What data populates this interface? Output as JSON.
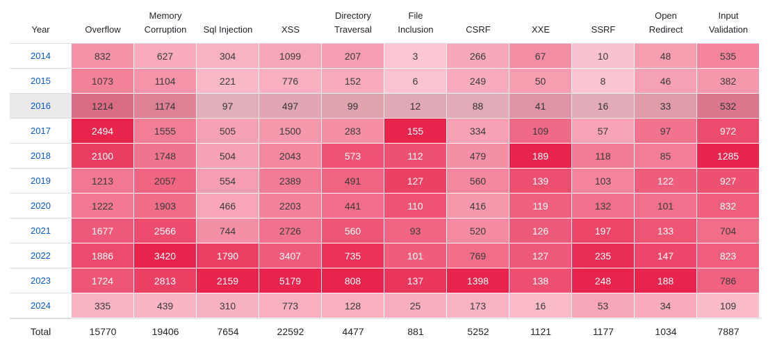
{
  "chart_data": {
    "type": "heatmap",
    "columns": [
      "Overflow",
      "Memory Corruption",
      "Sql Injection",
      "XSS",
      "Directory Traversal",
      "File Inclusion",
      "CSRF",
      "XXE",
      "SSRF",
      "Open Redirect",
      "Input Validation"
    ],
    "column_headers": [
      {
        "lines": [
          "Overflow"
        ]
      },
      {
        "lines": [
          "Memory",
          "Corruption"
        ]
      },
      {
        "lines": [
          "Sql Injection"
        ]
      },
      {
        "lines": [
          "XSS"
        ]
      },
      {
        "lines": [
          "Directory",
          "Traversal"
        ]
      },
      {
        "lines": [
          "File",
          "Inclusion"
        ]
      },
      {
        "lines": [
          "CSRF"
        ]
      },
      {
        "lines": [
          "XXE"
        ]
      },
      {
        "lines": [
          "SSRF"
        ]
      },
      {
        "lines": [
          "Open",
          "Redirect"
        ]
      },
      {
        "lines": [
          "Input",
          "Validation"
        ]
      }
    ],
    "year_header": "Year",
    "rows": [
      {
        "year": "2014",
        "values": [
          832,
          627,
          304,
          1099,
          207,
          3,
          266,
          67,
          10,
          48,
          535
        ]
      },
      {
        "year": "2015",
        "values": [
          1073,
          1104,
          221,
          776,
          152,
          6,
          249,
          50,
          8,
          46,
          382
        ]
      },
      {
        "year": "2016",
        "values": [
          1214,
          1174,
          97,
          497,
          99,
          12,
          88,
          41,
          16,
          33,
          532
        ]
      },
      {
        "year": "2017",
        "values": [
          2494,
          1555,
          505,
          1500,
          283,
          155,
          334,
          109,
          57,
          97,
          972
        ]
      },
      {
        "year": "2018",
        "values": [
          2100,
          1748,
          504,
          2043,
          573,
          112,
          479,
          189,
          118,
          85,
          1285
        ]
      },
      {
        "year": "2019",
        "values": [
          1213,
          2057,
          554,
          2389,
          491,
          127,
          560,
          139,
          103,
          122,
          927
        ]
      },
      {
        "year": "2020",
        "values": [
          1222,
          1903,
          466,
          2203,
          441,
          110,
          416,
          119,
          132,
          101,
          832
        ]
      },
      {
        "year": "2021",
        "values": [
          1677,
          2566,
          744,
          2726,
          560,
          93,
          520,
          126,
          197,
          133,
          704
        ]
      },
      {
        "year": "2022",
        "values": [
          1886,
          3420,
          1790,
          3407,
          735,
          101,
          769,
          127,
          235,
          147,
          823
        ]
      },
      {
        "year": "2023",
        "values": [
          1724,
          2813,
          2159,
          5179,
          808,
          137,
          1398,
          138,
          248,
          188,
          786
        ]
      },
      {
        "year": "2024",
        "values": [
          335,
          439,
          310,
          773,
          128,
          25,
          173,
          16,
          53,
          34,
          109
        ]
      }
    ],
    "highlighted_year": "2016",
    "total_label": "Total",
    "totals": [
      15770,
      19406,
      7654,
      22592,
      4477,
      881,
      5252,
      1121,
      1177,
      1034,
      7887
    ]
  },
  "colors": {
    "low": "#fbc9d4",
    "high": "#e8234c",
    "year_link": "#0a58ca",
    "highlight_row": "#e9e9e9"
  }
}
